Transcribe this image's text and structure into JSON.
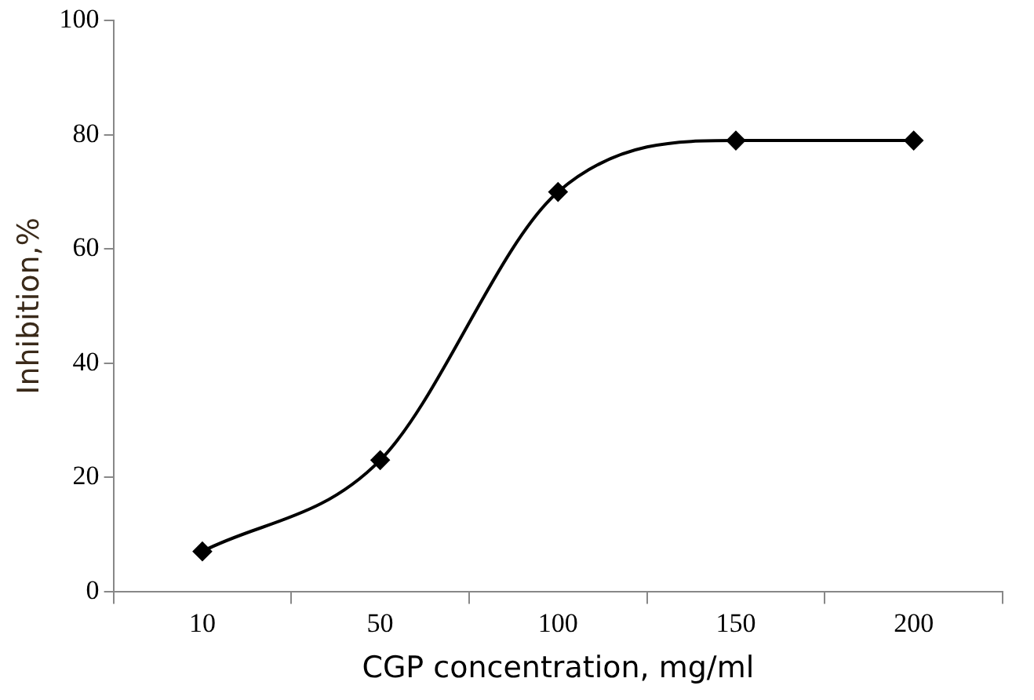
{
  "chart_data": {
    "type": "line",
    "xlabel": "CGP concentration, mg/ml",
    "ylabel": "Inhibition,%",
    "categories": [
      "10",
      "50",
      "100",
      "150",
      "200"
    ],
    "series": [
      {
        "color": "#000000",
        "values": [
          7,
          23,
          70,
          79,
          79
        ]
      }
    ],
    "ylim": [
      0,
      100
    ],
    "yticks": [
      0,
      20,
      40,
      60,
      80,
      100
    ],
    "grid": false,
    "marker": "diamond",
    "line_style": "solid"
  }
}
